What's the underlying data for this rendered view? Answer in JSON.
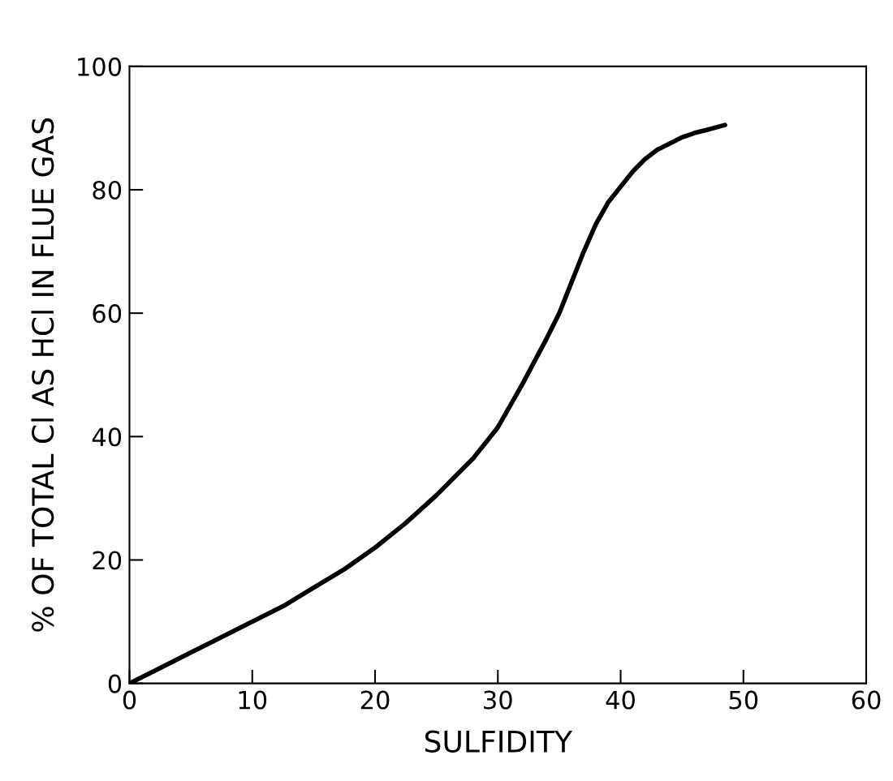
{
  "chart_data": {
    "type": "line",
    "xlabel": "SULFIDITY",
    "ylabel": "% OF TOTAL Cl AS HCl IN FLUE GAS",
    "x": [
      0,
      2,
      5,
      8,
      10,
      12.5,
      15,
      17.5,
      20,
      22.5,
      25,
      28,
      30,
      32,
      34,
      35,
      36,
      37,
      38,
      39,
      40,
      41,
      42,
      43,
      44,
      45,
      46,
      47,
      48.5
    ],
    "series": [
      {
        "color": "#000000",
        "values": [
          0,
          2,
          5,
          8,
          10,
          12.5,
          15.5,
          18.5,
          22,
          26,
          30.5,
          36.5,
          41.5,
          48.5,
          56,
          60,
          65,
          70,
          74.5,
          78,
          80.5,
          83,
          85,
          86.5,
          87.5,
          88.5,
          89.2,
          89.7,
          90.5
        ]
      }
    ],
    "xlim": [
      0,
      60
    ],
    "ylim": [
      0,
      100
    ],
    "xticks": [
      0,
      10,
      20,
      30,
      40,
      50,
      60
    ],
    "yticks": [
      0,
      20,
      40,
      60,
      80,
      100
    ],
    "grid": false,
    "legend": false,
    "marker": "none",
    "line_style": "solid"
  }
}
